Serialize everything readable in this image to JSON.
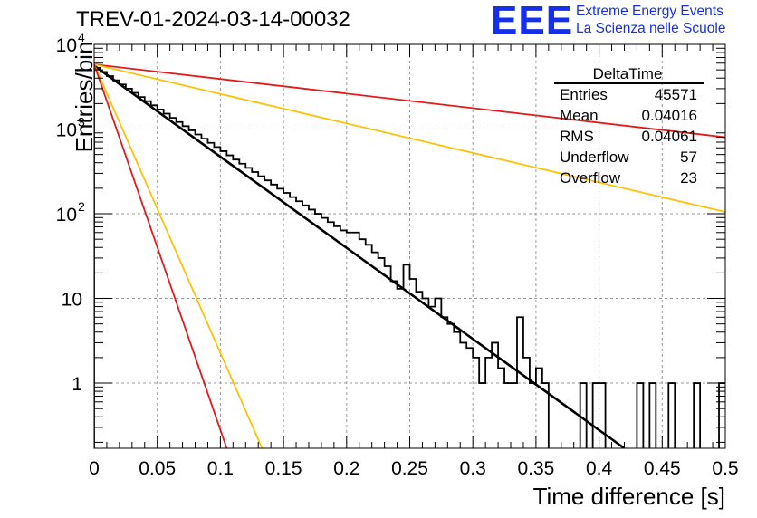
{
  "title": "TREV-01-2024-03-14-00032",
  "logo": {
    "mark": "EEE",
    "line1": "Extreme Energy Events",
    "line2": "La Scienza nelle Scuole"
  },
  "stats": {
    "name": "DeltaTime",
    "rows": [
      {
        "label": "Entries",
        "value": "45571"
      },
      {
        "label": "Mean",
        "value": "0.04016"
      },
      {
        "label": "RMS",
        "value": "0.04061"
      },
      {
        "label": "Underflow",
        "value": "57"
      },
      {
        "label": "Overflow",
        "value": "23"
      }
    ]
  },
  "chart_data": {
    "type": "histogram",
    "title": "TREV-01-2024-03-14-00032",
    "xlabel": "Time difference [s]",
    "ylabel": "Entries/bin",
    "xlim": [
      0,
      0.5
    ],
    "ylim": [
      0.17,
      10000
    ],
    "y_scale": "log",
    "grid": true,
    "x_ticks": [
      "0",
      "0.05",
      "0.1",
      "0.15",
      "0.2",
      "0.25",
      "0.3",
      "0.35",
      "0.4",
      "0.45",
      "0.5"
    ],
    "y_ticks": [
      {
        "value": 1,
        "label": "1"
      },
      {
        "value": 10,
        "label": "10"
      },
      {
        "value": 100,
        "label": "10",
        "exp": "2"
      },
      {
        "value": 1000,
        "label": "10",
        "exp": "3"
      },
      {
        "value": 10000,
        "label": "10",
        "exp": "4"
      }
    ],
    "histogram": {
      "bin_width": 0.005,
      "smooth_until": 0.2,
      "smooth_rate": 1.0,
      "smooth_value_at_zero": 5600,
      "tail_bins": [
        {
          "x": 0.2,
          "value": 60
        },
        {
          "x": 0.205,
          "value": 60
        },
        {
          "x": 0.21,
          "value": 50
        },
        {
          "x": 0.215,
          "value": 43
        },
        {
          "x": 0.22,
          "value": 35
        },
        {
          "x": 0.225,
          "value": 30
        },
        {
          "x": 0.23,
          "value": 24
        },
        {
          "x": 0.235,
          "value": 16
        },
        {
          "x": 0.24,
          "value": 13
        },
        {
          "x": 0.245,
          "value": 25
        },
        {
          "x": 0.25,
          "value": 17
        },
        {
          "x": 0.255,
          "value": 12
        },
        {
          "x": 0.26,
          "value": 10
        },
        {
          "x": 0.265,
          "value": 8
        },
        {
          "x": 0.27,
          "value": 10
        },
        {
          "x": 0.275,
          "value": 6
        },
        {
          "x": 0.28,
          "value": 5
        },
        {
          "x": 0.285,
          "value": 4
        },
        {
          "x": 0.29,
          "value": 3
        },
        {
          "x": 0.295,
          "value": 2.6
        },
        {
          "x": 0.3,
          "value": 2
        },
        {
          "x": 0.305,
          "value": 1
        },
        {
          "x": 0.31,
          "value": 2
        },
        {
          "x": 0.315,
          "value": 3
        },
        {
          "x": 0.32,
          "value": 1.5
        },
        {
          "x": 0.325,
          "value": 1
        },
        {
          "x": 0.33,
          "value": 1
        },
        {
          "x": 0.335,
          "value": 6
        },
        {
          "x": 0.34,
          "value": 2
        },
        {
          "x": 0.345,
          "value": 1
        },
        {
          "x": 0.35,
          "value": 1.5
        },
        {
          "x": 0.355,
          "value": 1
        },
        {
          "x": 0.36,
          "value": 0
        },
        {
          "x": 0.365,
          "value": 0
        },
        {
          "x": 0.37,
          "value": 0
        },
        {
          "x": 0.375,
          "value": 0
        },
        {
          "x": 0.38,
          "value": 0
        },
        {
          "x": 0.385,
          "value": 1
        },
        {
          "x": 0.39,
          "value": 0
        },
        {
          "x": 0.395,
          "value": 1
        },
        {
          "x": 0.4,
          "value": 1
        },
        {
          "x": 0.405,
          "value": 0
        },
        {
          "x": 0.41,
          "value": 0
        },
        {
          "x": 0.415,
          "value": 0
        },
        {
          "x": 0.42,
          "value": 0
        },
        {
          "x": 0.425,
          "value": 0
        },
        {
          "x": 0.43,
          "value": 1
        },
        {
          "x": 0.435,
          "value": 0
        },
        {
          "x": 0.44,
          "value": 1
        },
        {
          "x": 0.445,
          "value": 0
        },
        {
          "x": 0.45,
          "value": 0
        },
        {
          "x": 0.455,
          "value": 1
        },
        {
          "x": 0.46,
          "value": 0
        },
        {
          "x": 0.465,
          "value": 0
        },
        {
          "x": 0.47,
          "value": 0
        },
        {
          "x": 0.475,
          "value": 1
        },
        {
          "x": 0.48,
          "value": 0
        },
        {
          "x": 0.485,
          "value": 0
        },
        {
          "x": 0.49,
          "value": 0
        },
        {
          "x": 0.495,
          "value": 1
        }
      ]
    },
    "curves": [
      {
        "color": "#000000",
        "points": [
          {
            "x": 0,
            "y": 5600
          },
          {
            "x": 0.42,
            "y": 0.17
          }
        ]
      },
      {
        "color": "#e31a1c",
        "points": [
          {
            "x": 0,
            "y": 5800
          },
          {
            "x": 0.5,
            "y": 800
          }
        ]
      },
      {
        "color": "#ffc107",
        "points": [
          {
            "x": 0,
            "y": 5800
          },
          {
            "x": 0.5,
            "y": 105
          }
        ]
      },
      {
        "color": "#ffc107",
        "points": [
          {
            "x": 0,
            "y": 5800
          },
          {
            "x": 0.133,
            "y": 0.17
          }
        ]
      },
      {
        "color": "#e31a1c",
        "points": [
          {
            "x": 0,
            "y": 5800
          },
          {
            "x": 0.105,
            "y": 0.17
          }
        ]
      }
    ]
  }
}
